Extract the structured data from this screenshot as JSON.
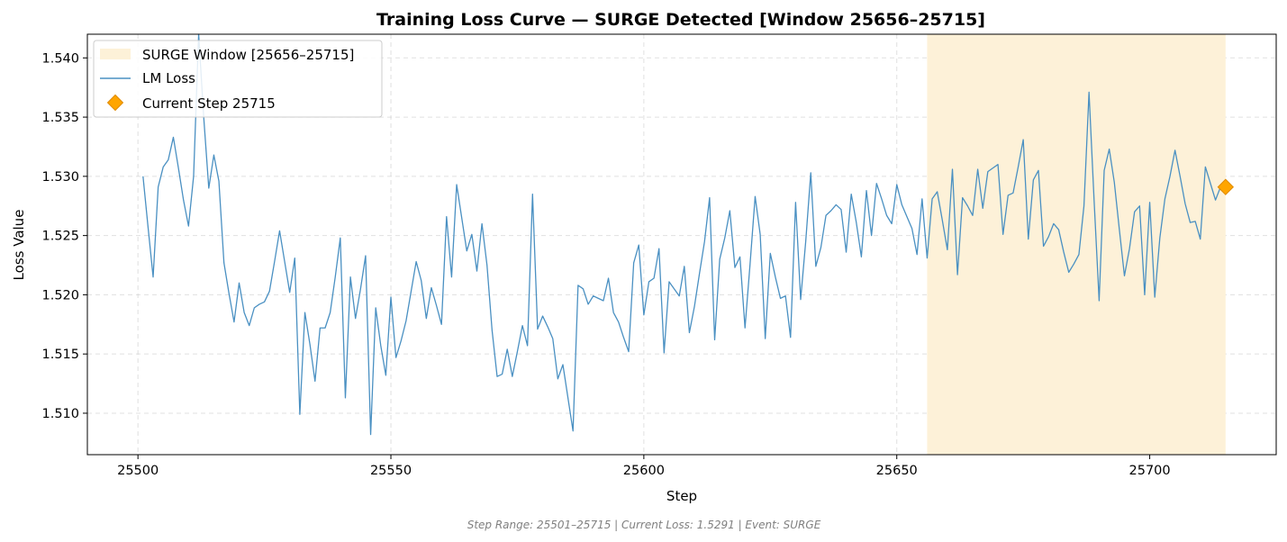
{
  "chart_data": {
    "type": "line",
    "title": "Training Loss Curve — SURGE Detected [Window 25656–25715]",
    "xlabel": "Step",
    "ylabel": "Loss Value",
    "xlim": [
      25490,
      25725
    ],
    "ylim": [
      1.5065,
      1.542
    ],
    "xticks": [
      25500,
      25550,
      25600,
      25650,
      25700
    ],
    "yticks": [
      1.51,
      1.515,
      1.52,
      1.525,
      1.53,
      1.535,
      1.54
    ],
    "grid": true,
    "legend_position": "upper-left",
    "legend": [
      {
        "label": "SURGE Window [25656–25715]",
        "kind": "span",
        "color": "#fdf1d8"
      },
      {
        "label": "LM Loss",
        "kind": "line",
        "color": "#4a90c2"
      },
      {
        "label": "Current Step 25715",
        "kind": "marker",
        "color": "#ffa500"
      }
    ],
    "surge_window": {
      "start": 25656,
      "end": 25715,
      "color": "#fdf1d8"
    },
    "current_step": {
      "x": 25715,
      "y": 1.5291,
      "color": "#ffa500"
    },
    "series": [
      {
        "name": "LM Loss",
        "color": "#4a90c2",
        "x_start": 25501,
        "x_step": 1,
        "values": [
          1.53,
          1.5257,
          1.5215,
          1.5291,
          1.5308,
          1.5314,
          1.5333,
          1.5307,
          1.528,
          1.5258,
          1.53,
          1.542,
          1.535,
          1.529,
          1.5318,
          1.5296,
          1.5227,
          1.5201,
          1.5177,
          1.521,
          1.5185,
          1.5174,
          1.5189,
          1.5192,
          1.5194,
          1.5203,
          1.5228,
          1.5254,
          1.5228,
          1.5202,
          1.5231,
          1.5099,
          1.5185,
          1.5158,
          1.5127,
          1.5172,
          1.5172,
          1.5185,
          1.5215,
          1.5248,
          1.5113,
          1.5215,
          1.518,
          1.5205,
          1.5233,
          1.5082,
          1.5189,
          1.5157,
          1.5132,
          1.5198,
          1.5147,
          1.5161,
          1.5178,
          1.5203,
          1.5228,
          1.5212,
          1.518,
          1.5206,
          1.5191,
          1.5175,
          1.5266,
          1.5215,
          1.5293,
          1.5265,
          1.5237,
          1.5251,
          1.522,
          1.526,
          1.5225,
          1.517,
          1.5131,
          1.5133,
          1.5154,
          1.5131,
          1.5152,
          1.5174,
          1.5157,
          1.5285,
          1.5171,
          1.5182,
          1.5173,
          1.5163,
          1.5129,
          1.5141,
          1.5113,
          1.5085,
          1.5208,
          1.5205,
          1.5192,
          1.5199,
          1.5197,
          1.5195,
          1.5214,
          1.5185,
          1.5177,
          1.5164,
          1.5152,
          1.5227,
          1.5242,
          1.5183,
          1.5211,
          1.5214,
          1.5239,
          1.5151,
          1.5211,
          1.5205,
          1.5199,
          1.5224,
          1.5168,
          1.519,
          1.5218,
          1.5245,
          1.5282,
          1.5162,
          1.523,
          1.5248,
          1.5271,
          1.5223,
          1.5232,
          1.5172,
          1.5226,
          1.5283,
          1.5251,
          1.5163,
          1.5235,
          1.5215,
          1.5197,
          1.5199,
          1.5164,
          1.5278,
          1.5196,
          1.5245,
          1.5303,
          1.5224,
          1.524,
          1.5267,
          1.5271,
          1.5276,
          1.5272,
          1.5236,
          1.5285,
          1.5261,
          1.5232,
          1.5288,
          1.525,
          1.5294,
          1.5281,
          1.5267,
          1.526,
          1.5293,
          1.5276,
          1.5266,
          1.5256,
          1.5234,
          1.5281,
          1.5231,
          1.5281,
          1.5287,
          1.5263,
          1.5238,
          1.5306,
          1.5217,
          1.5282,
          1.5275,
          1.5267,
          1.5306,
          1.5273,
          1.5304,
          1.5307,
          1.531,
          1.5251,
          1.5284,
          1.5286,
          1.5308,
          1.5331,
          1.5247,
          1.5297,
          1.5305,
          1.5241,
          1.5249,
          1.526,
          1.5255,
          1.5236,
          1.5219,
          1.5226,
          1.5234,
          1.5275,
          1.5371,
          1.528,
          1.5195,
          1.5305,
          1.5323,
          1.5295,
          1.5255,
          1.5216,
          1.5239,
          1.527,
          1.5275,
          1.52,
          1.5278,
          1.5198,
          1.5248,
          1.5281,
          1.53,
          1.5322,
          1.53,
          1.5277,
          1.5261,
          1.5262,
          1.5247,
          1.5308,
          1.5294,
          1.528,
          1.5291
        ]
      }
    ]
  },
  "footer": "Step Range: 25501–25715 | Current Loss: 1.5291 | Event: SURGE"
}
